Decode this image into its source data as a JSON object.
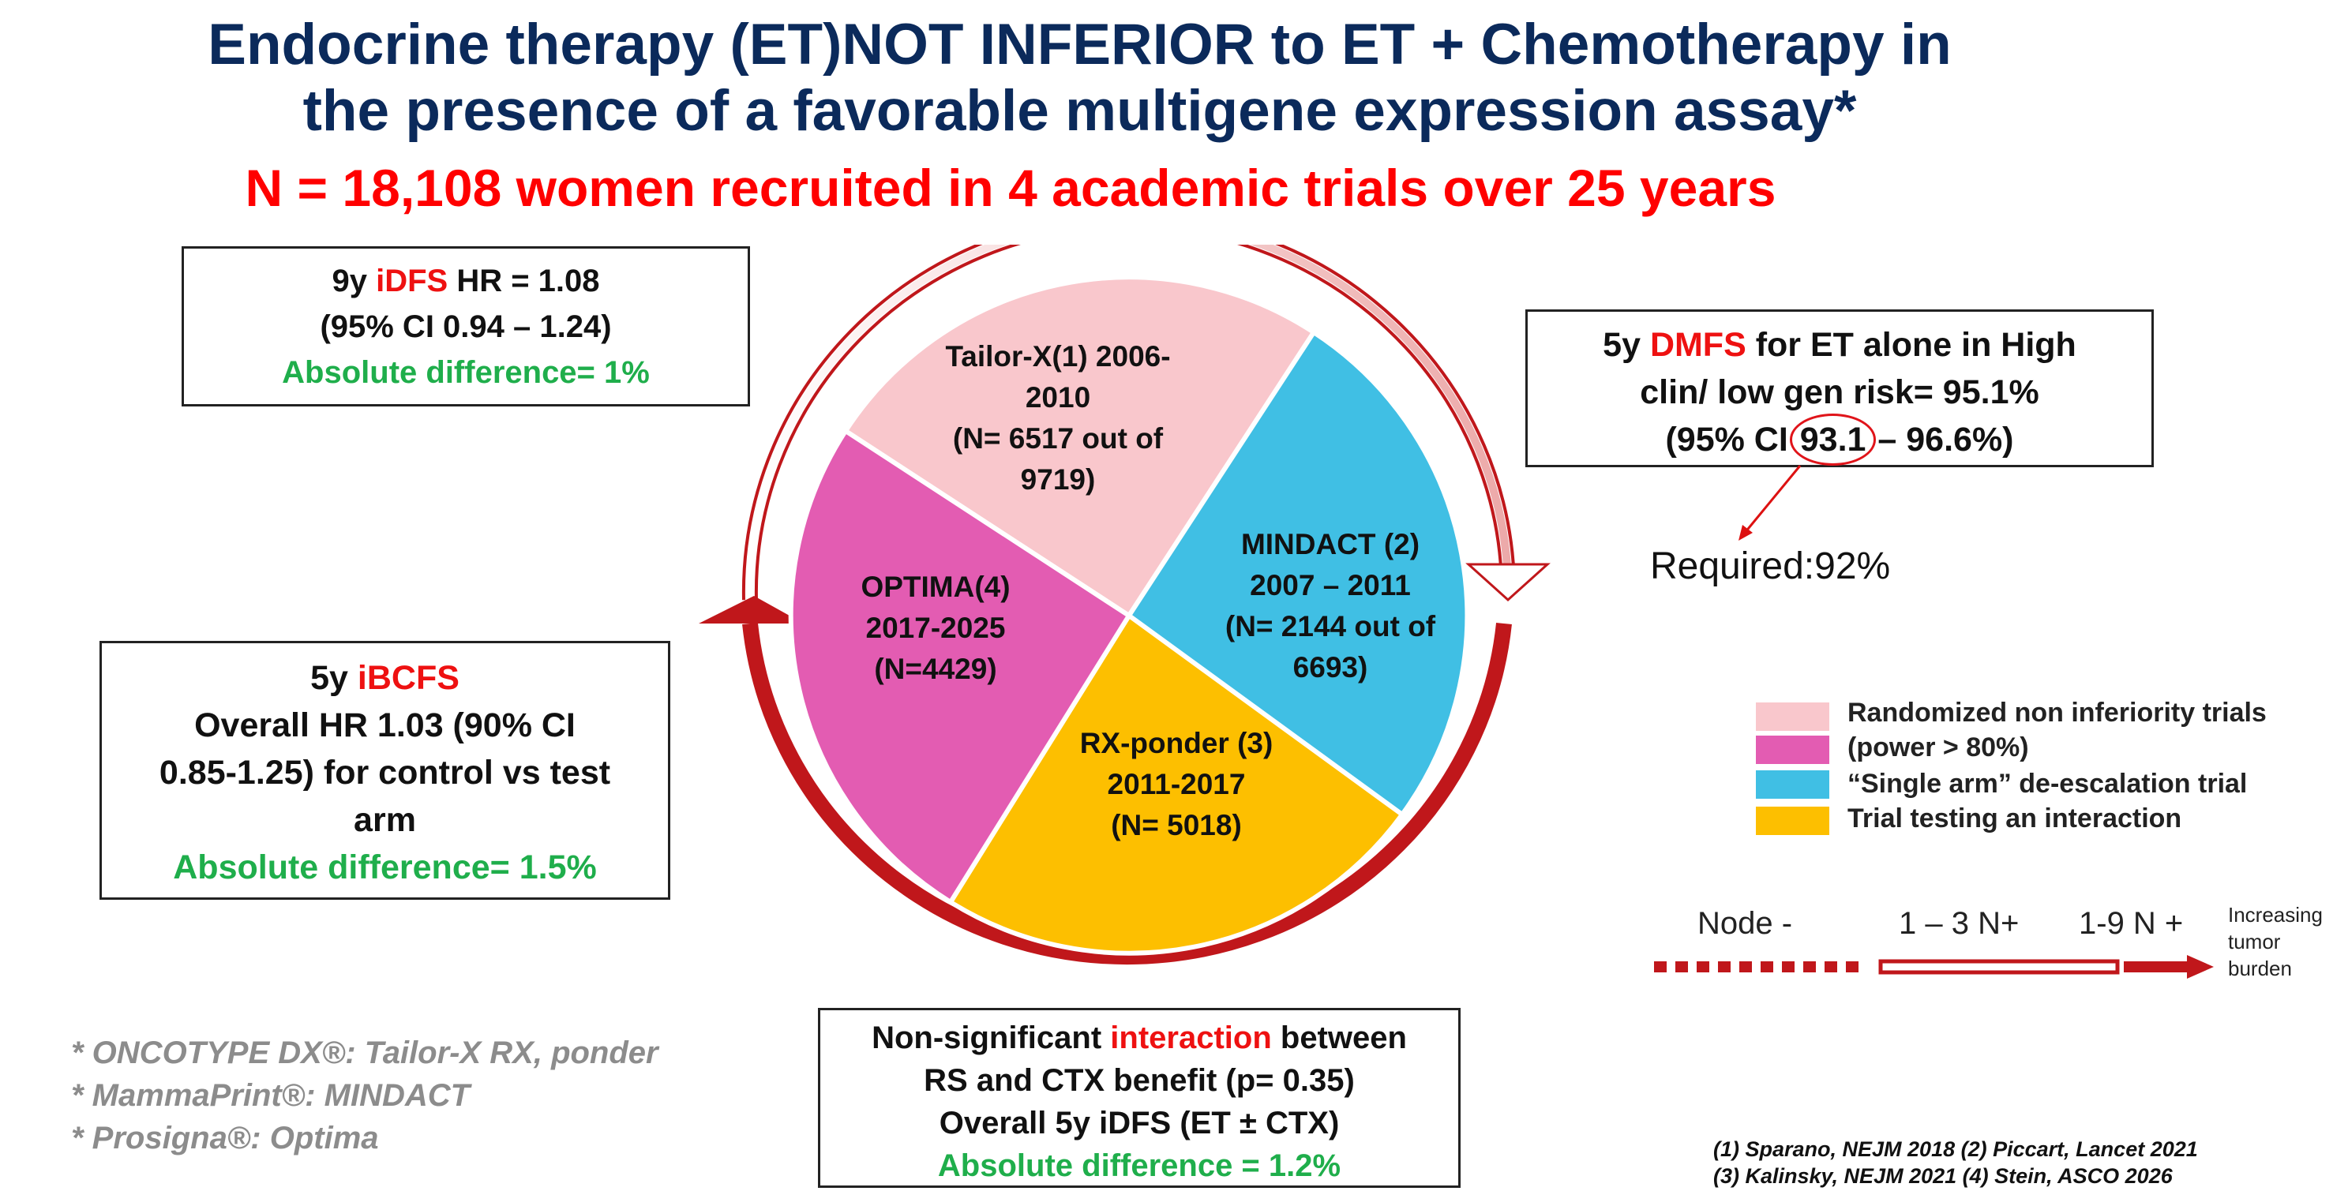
{
  "title": {
    "line1": "Endocrine therapy (ET)NOT INFERIOR to ET + Chemotherapy in",
    "line2": "the presence of a favorable multigene expression assay*",
    "subtitle": "N = 18,108 women recruited in 4 academic trials over 25 years"
  },
  "box_idfs": {
    "l1_a": "9y ",
    "l1_red": "iDFS",
    "l1_b": " HR = 1.08",
    "l2": "(95% CI 0.94 – 1.24)",
    "l3": "Absolute difference= 1%"
  },
  "box_ibcfs": {
    "l1_a": "5y ",
    "l1_red": "iBCFS",
    "l2": "Overall HR 1.03 (90% CI",
    "l3": "0.85-1.25) for control vs test",
    "l4": "arm",
    "l5": "Absolute difference= 1.5%"
  },
  "box_dmfs": {
    "l1_a": "5y ",
    "l1_red": "DMFS",
    "l1_b": " for ET alone in High",
    "l2": "clin/ low gen risk= 95.1%",
    "l3_a": "(95% CI ",
    "l3_circled": "93.1",
    "l3_b": " – 96.6%)",
    "required": "Required:92%"
  },
  "box_interaction": {
    "l1_a": "Non-significant ",
    "l1_red": "interaction",
    "l1_b": " between",
    "l2": "RS and CTX benefit (p= 0.35)",
    "l3": "Overall 5y iDFS (ET ± CTX)",
    "l4": "Absolute difference = 1.2%"
  },
  "pie": {
    "tailorx": [
      "Tailor-X(1) 2006-",
      "2010",
      "(N= 6517 out of",
      "9719)"
    ],
    "mindact": [
      "MINDACT (2)",
      "2007 – 2011",
      "(N= 2144 out of",
      "6693)"
    ],
    "rxponder": [
      "RX-ponder (3)",
      "2011-2017",
      "(N= 5018)"
    ],
    "optima": [
      "OPTIMA(4)",
      "2017-2025",
      "(N=4429)"
    ],
    "colors": {
      "tailorx": "#f9c7cc",
      "mindact": "#40bfe4",
      "rxponder": "#fdbf00",
      "optima": "#e35cb2"
    }
  },
  "legend": {
    "item1": "Randomized non inferiority trials",
    "item2": "(power > 80%)",
    "item3": "“Single arm” de-escalation trial",
    "item4": "Trial testing an interaction"
  },
  "burden": {
    "node_neg": "Node -",
    "n13": "1 – 3 N+",
    "n19": "1-9 N +",
    "increasing": [
      "Increasing",
      "tumor",
      "burden"
    ]
  },
  "footnotes": [
    "* ONCOTYPE DX®: Tailor-X RX, ponder",
    "* MammaPrint®: MINDACT",
    "* Prosigna®: Optima"
  ],
  "references": [
    "(1)  Sparano, NEJM 2018  (2)  Piccart, Lancet 2021",
    "(3)  Kalinsky, NEJM 2021  (4)  Stein, ASCO 2026"
  ]
}
